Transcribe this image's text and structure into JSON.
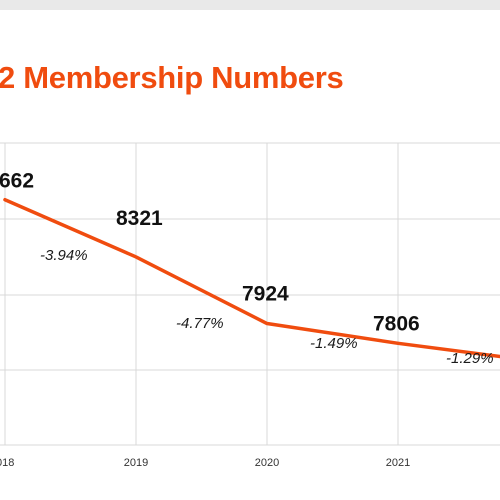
{
  "colors": {
    "accent": "#f04c0f",
    "grid": "#d9d9d9",
    "text": "#111111"
  },
  "chart_data": {
    "type": "line",
    "title": "2 Membership Numbers",
    "categories": [
      "018",
      "2019",
      "2020",
      "2021",
      ""
    ],
    "series": [
      {
        "values": [
          8662,
          8321,
          7924,
          7806,
          7705
        ]
      }
    ],
    "value_labels": [
      "662",
      "8321",
      "7924",
      "7806",
      ""
    ],
    "change_labels": [
      "-3.94%",
      "-4.77%",
      "-1.49%",
      "-1.29%"
    ],
    "ylim": [
      7200,
      9000
    ],
    "grid": true,
    "line_color": "#f04c0f"
  }
}
